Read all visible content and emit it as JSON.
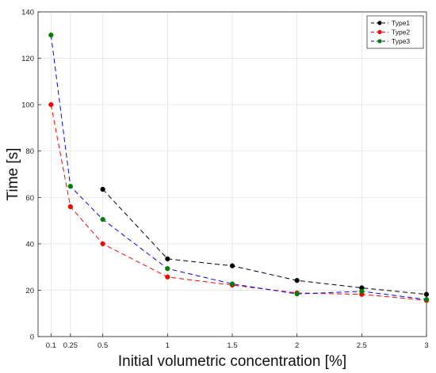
{
  "chart_data": {
    "type": "line",
    "title": "",
    "xlabel": "Initial volumetric concentration [%]",
    "ylabel": "Time [s]",
    "xlim": [
      0,
      3
    ],
    "ylim": [
      0,
      140
    ],
    "xticks": [
      0.1,
      0.25,
      0.5,
      1,
      1.5,
      2,
      2.5,
      3
    ],
    "xtick_labels": [
      "0.1",
      "0.25",
      "0.5",
      "1",
      "1.5",
      "2",
      "2.5",
      "3"
    ],
    "yticks": [
      0,
      20,
      40,
      60,
      80,
      100,
      120,
      140
    ],
    "ytick_labels": [
      "0",
      "20",
      "40",
      "60",
      "80",
      "100",
      "120",
      "140"
    ],
    "grid": true,
    "legend_position": "top-right",
    "series": [
      {
        "name": "Type1",
        "color": "#000000",
        "marker": "circle",
        "line_style": "dashed",
        "x": [
          0.5,
          1,
          1.5,
          2,
          2.5,
          3
        ],
        "values": [
          63.5,
          33.5,
          30.5,
          24.2,
          21,
          18.2
        ]
      },
      {
        "name": "Type2",
        "color": "#ff0000",
        "marker": "circle",
        "line_style": "dashed",
        "x": [
          0.1,
          0.25,
          0.5,
          1,
          1.5,
          2,
          2.5,
          3
        ],
        "values": [
          100,
          56,
          40,
          25.7,
          22.2,
          18.8,
          18.2,
          15.6
        ]
      },
      {
        "name": "Type3",
        "color": "#0000ff",
        "marker_color": "#008000",
        "marker": "circle",
        "line_style": "dashed",
        "x": [
          0.1,
          0.25,
          0.5,
          1,
          1.5,
          2,
          2.5,
          3
        ],
        "values": [
          130,
          64.8,
          50.5,
          29.3,
          22.7,
          18.4,
          19.5,
          16
        ]
      }
    ]
  }
}
